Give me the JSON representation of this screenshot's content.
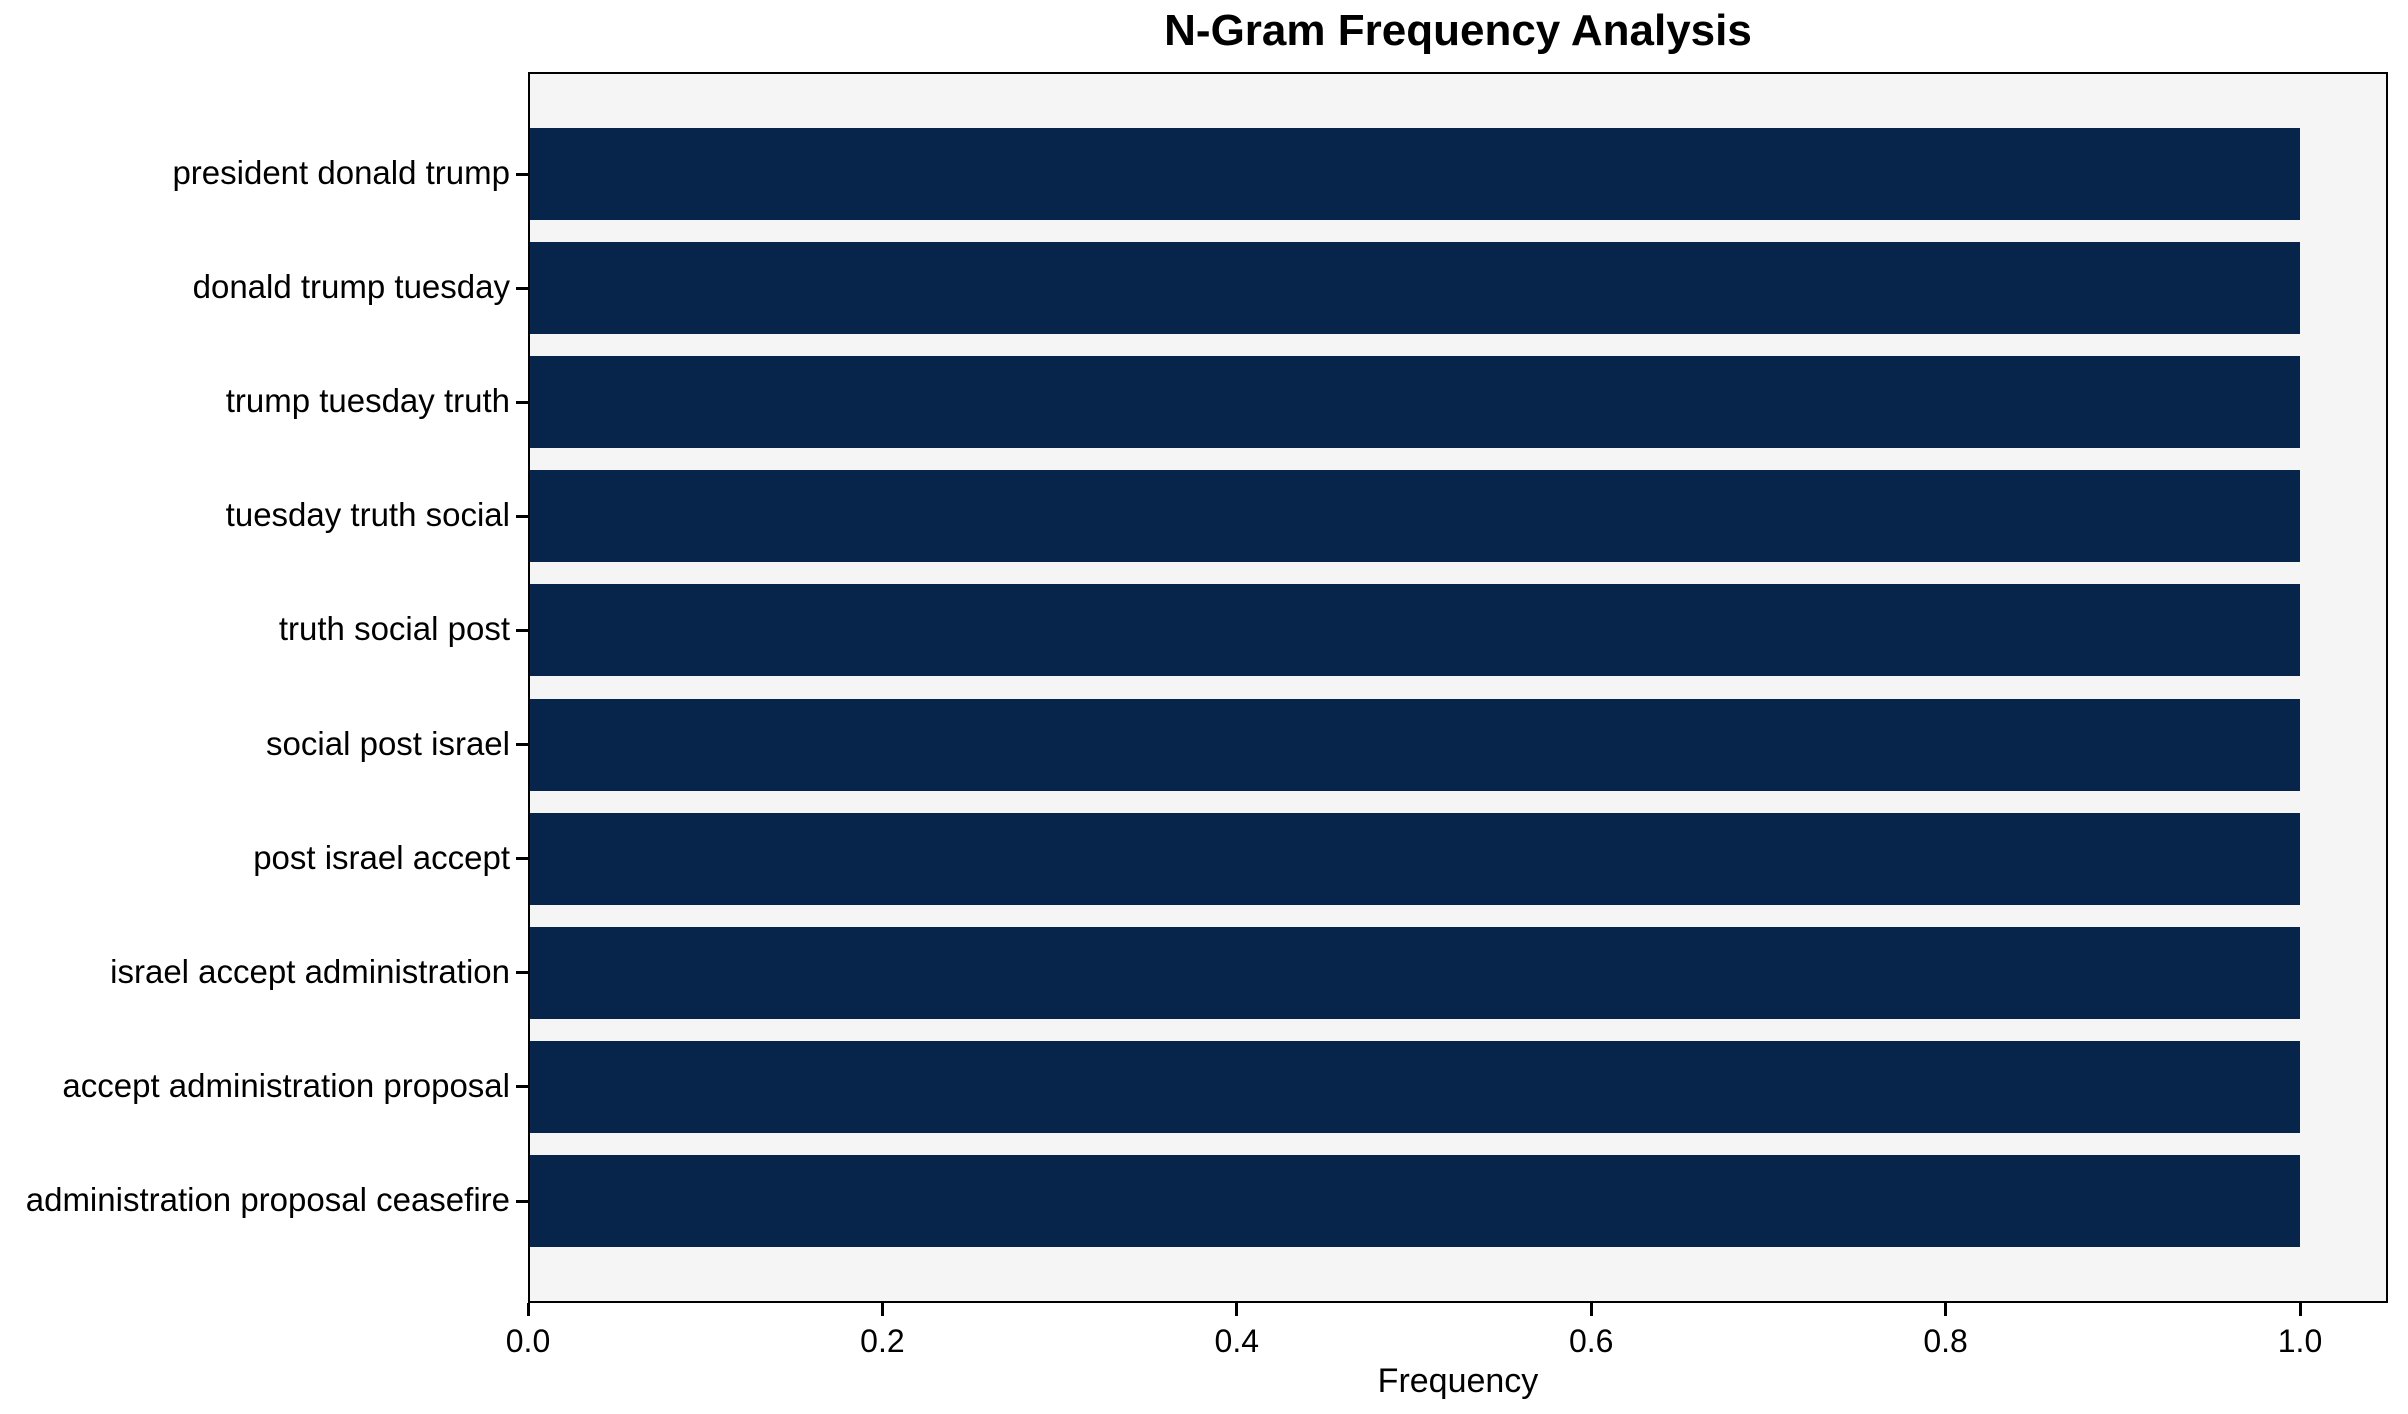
{
  "title": "N-Gram Frequency Analysis",
  "colors": {
    "bar": "#07244a",
    "plot_background": "#f5f5f5",
    "figure_background": "#ffffff",
    "axis": "#000000",
    "text": "#000000"
  },
  "chart_data": {
    "type": "bar",
    "orientation": "horizontal",
    "title": "N-Gram Frequency Analysis",
    "xlabel": "Frequency",
    "ylabel": "",
    "categories": [
      "president donald trump",
      "donald trump tuesday",
      "trump tuesday truth",
      "tuesday truth social",
      "truth social post",
      "social post israel",
      "post israel accept",
      "israel accept administration",
      "accept administration proposal",
      "administration proposal ceasefire"
    ],
    "values": [
      1.0,
      1.0,
      1.0,
      1.0,
      1.0,
      1.0,
      1.0,
      1.0,
      1.0,
      1.0
    ],
    "xlim": [
      0.0,
      1.05
    ],
    "xticks": [
      0.0,
      0.2,
      0.4,
      0.6,
      0.8,
      1.0
    ],
    "xtick_labels": [
      "0.0",
      "0.2",
      "0.4",
      "0.6",
      "0.8",
      "1.0"
    ],
    "grid": false,
    "legend_position": "none"
  }
}
